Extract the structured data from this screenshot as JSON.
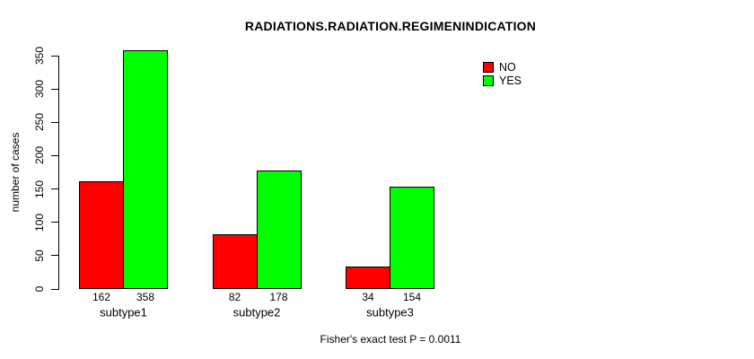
{
  "chart_data": {
    "type": "bar",
    "title": "RADIATIONS.RADIATION.REGIMENINDICATION",
    "xlabel": "",
    "ylabel": "number of cases",
    "categories": [
      "subtype1",
      "subtype2",
      "subtype3"
    ],
    "series": [
      {
        "name": "NO",
        "color": "#ff0000",
        "values": [
          162,
          82,
          34
        ]
      },
      {
        "name": "YES",
        "color": "#00ff00",
        "values": [
          358,
          178,
          154
        ]
      }
    ],
    "bar_value_labels_shown": true,
    "y_ticks": [
      0,
      50,
      100,
      150,
      200,
      250,
      300,
      350
    ],
    "ylim": [
      0,
      358
    ],
    "grid": false,
    "legend_position": "top-right",
    "annotation": "Fisher's exact test P = 0.0011",
    "colors": {
      "background": "#ffffff",
      "axis": "#000000",
      "text": "#000000",
      "no_bar": "#ff0000",
      "yes_bar": "#00ff00"
    }
  }
}
